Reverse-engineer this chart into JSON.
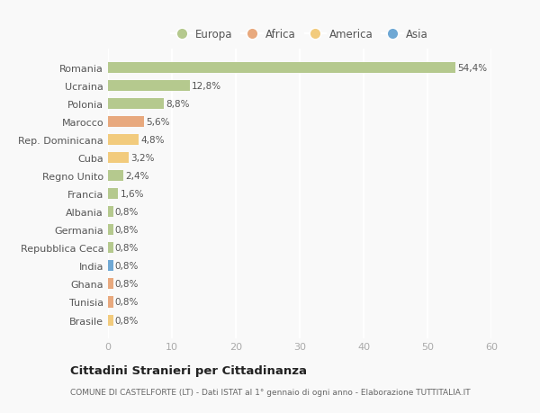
{
  "categories": [
    "Romania",
    "Ucraina",
    "Polonia",
    "Marocco",
    "Rep. Dominicana",
    "Cuba",
    "Regno Unito",
    "Francia",
    "Albania",
    "Germania",
    "Repubblica Ceca",
    "India",
    "Ghana",
    "Tunisia",
    "Brasile"
  ],
  "values": [
    54.4,
    12.8,
    8.8,
    5.6,
    4.8,
    3.2,
    2.4,
    1.6,
    0.8,
    0.8,
    0.8,
    0.8,
    0.8,
    0.8,
    0.8
  ],
  "labels": [
    "54,4%",
    "12,8%",
    "8,8%",
    "5,6%",
    "4,8%",
    "3,2%",
    "2,4%",
    "1,6%",
    "0,8%",
    "0,8%",
    "0,8%",
    "0,8%",
    "0,8%",
    "0,8%",
    "0,8%"
  ],
  "colors": [
    "#b5c98e",
    "#b5c98e",
    "#b5c98e",
    "#e8a97e",
    "#f2cb7d",
    "#f2cb7d",
    "#b5c98e",
    "#b5c98e",
    "#b5c98e",
    "#b5c98e",
    "#b5c98e",
    "#6fa8d4",
    "#e8a97e",
    "#e8a97e",
    "#f2cb7d"
  ],
  "legend_labels": [
    "Europa",
    "Africa",
    "America",
    "Asia"
  ],
  "legend_colors": [
    "#b5c98e",
    "#e8a97e",
    "#f2cb7d",
    "#6fa8d4"
  ],
  "xlim": [
    0,
    60
  ],
  "xticks": [
    0,
    10,
    20,
    30,
    40,
    50,
    60
  ],
  "title": "Cittadini Stranieri per Cittadinanza",
  "subtitle": "COMUNE DI CASTELFORTE (LT) - Dati ISTAT al 1° gennaio di ogni anno - Elaborazione TUTTITALIA.IT",
  "background_color": "#f9f9f9",
  "grid_color": "#ffffff",
  "bar_height": 0.6
}
